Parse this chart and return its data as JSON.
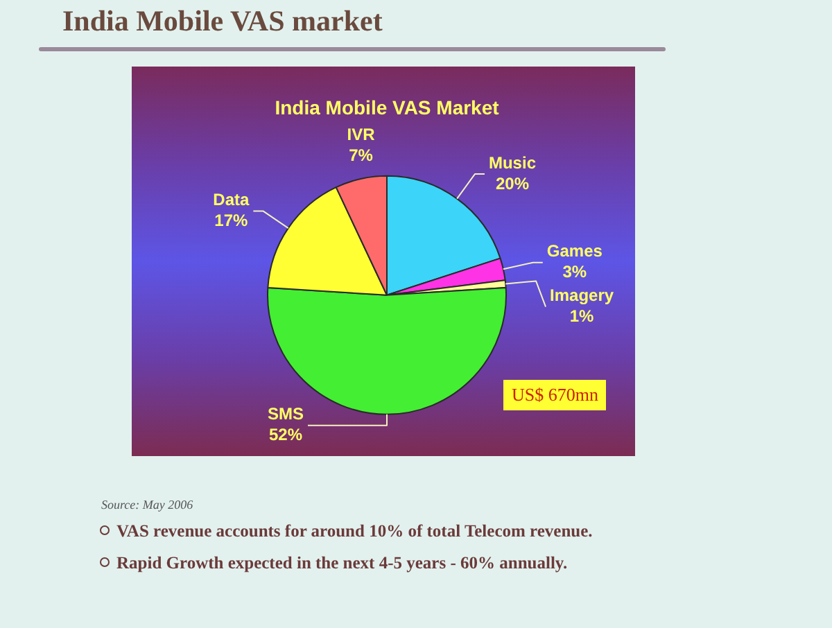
{
  "chart_data": {
    "type": "pie",
    "title": "India Mobile VAS market",
    "subtitle": "India Mobile VAS Market",
    "categories": [
      "Music",
      "Games",
      "Imagery",
      "SMS",
      "Data",
      "IVR"
    ],
    "values": [
      20,
      3,
      1,
      52,
      17,
      7
    ],
    "value_labels": [
      "20%",
      "3%",
      "1%",
      "52%",
      "17%",
      "7%"
    ],
    "colors": [
      "#3cd4f8",
      "#ff33e6",
      "#ffff99",
      "#44ee33",
      "#ffff33",
      "#ff6b6b"
    ],
    "legend": false,
    "annotations": [
      "US$ 670mn",
      "Source: May 2006",
      "VAS revenue accounts for around 10% of total Telecom revenue.",
      "Rapid Growth expected in the next 4-5 years - 60% annually."
    ]
  }
}
